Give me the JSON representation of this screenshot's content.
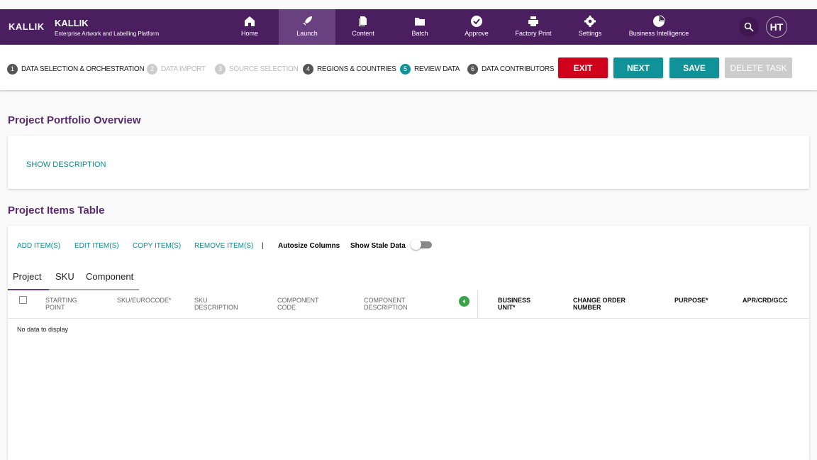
{
  "header": {
    "logo": "KALLIK",
    "brand": "KALLIK",
    "tagline": "Enterprise Artwork and Labelling Platform",
    "nav": [
      {
        "label": "Home",
        "icon": "home-icon"
      },
      {
        "label": "Launch",
        "icon": "rocket-icon",
        "active": true
      },
      {
        "label": "Content",
        "icon": "document-icon"
      },
      {
        "label": "Batch",
        "icon": "folder-icon"
      },
      {
        "label": "Approve",
        "icon": "check-circle-icon"
      },
      {
        "label": "Factory Print",
        "icon": "printer-icon"
      },
      {
        "label": "Settings",
        "icon": "gear-icon"
      },
      {
        "label": "Business Intelligence",
        "icon": "pie-chart-icon"
      }
    ],
    "avatar": "HT"
  },
  "stepper": {
    "steps": [
      {
        "n": "1",
        "label": "DATA SELECTION & ORCHESTRATION",
        "state": "done"
      },
      {
        "n": "2",
        "label": "DATA IMPORT",
        "state": "disabled"
      },
      {
        "n": "3",
        "label": "SOURCE SELECTION",
        "state": "disabled"
      },
      {
        "n": "4",
        "label": "REGIONS & COUNTRIES",
        "state": "done"
      },
      {
        "n": "5",
        "label": "REVIEW DATA",
        "state": "current"
      },
      {
        "n": "6",
        "label": "DATA CONTRIBUTORS",
        "state": "done"
      }
    ],
    "buttons": {
      "exit": "EXIT",
      "next": "NEXT",
      "save": "SAVE",
      "delete": "DELETE TASK"
    }
  },
  "colors": {
    "brand": "#4a1e5f",
    "accent": "#0f9398",
    "danger": "#d0021b",
    "disabled": "#cccccc"
  },
  "portfolio": {
    "title": "Project Portfolio Overview",
    "show_description": "SHOW DESCRIPTION"
  },
  "items": {
    "title": "Project Items Table",
    "actions": [
      "ADD ITEM(S)",
      "EDIT ITEM(S)",
      "COPY ITEM(S)",
      "REMOVE ITEM(S)"
    ],
    "separator": "|",
    "autosize": "Autosize Columns",
    "stale": "Show Stale Data",
    "stale_on": false,
    "tabs": [
      "Project",
      "SKU",
      "Component"
    ],
    "columns": [
      [
        "STARTING",
        "POINT"
      ],
      [
        "SKU/EUROCODE*",
        ""
      ],
      [
        "SKU",
        "DESCRIPTION"
      ],
      [
        "COMPONENT",
        "CODE"
      ],
      [
        "COMPONENT",
        "DESCRIPTION"
      ]
    ],
    "pinned_columns": [
      [
        "BUSINESS",
        "UNIT*"
      ],
      [
        "CHANGE ORDER",
        "NUMBER"
      ],
      [
        "PURPOSE*",
        ""
      ],
      [
        "APR/CRD/GCC",
        ""
      ]
    ],
    "empty": "No data to display"
  }
}
